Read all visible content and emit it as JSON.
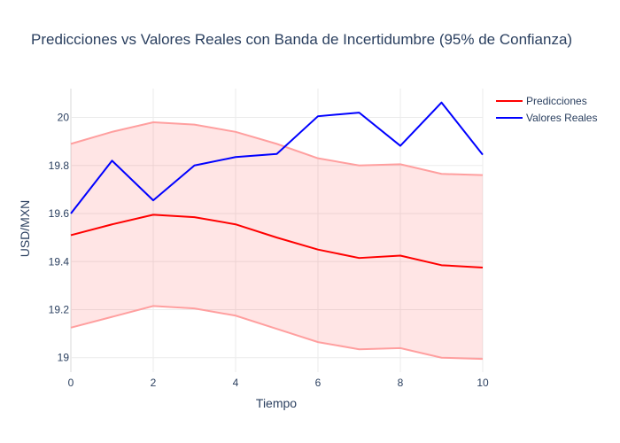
{
  "chart_data": {
    "type": "line",
    "title": "Predicciones vs Valores Reales con Banda de Incertidumbre (95% de Confianza)",
    "xlabel": "Tiempo",
    "ylabel": "USD/MXN",
    "xlim": [
      0,
      10
    ],
    "ylim": [
      18.94,
      20.12
    ],
    "xticks": [
      0,
      2,
      4,
      6,
      8,
      10
    ],
    "yticks": [
      19,
      19.2,
      19.4,
      19.6,
      19.8,
      20
    ],
    "grid": true,
    "legend_position": "top-right",
    "x": [
      0,
      1,
      2,
      3,
      4,
      5,
      6,
      7,
      8,
      9,
      10
    ],
    "band": {
      "upper": [
        19.89,
        19.94,
        19.98,
        19.97,
        19.94,
        19.89,
        19.83,
        19.8,
        19.805,
        19.765,
        19.76
      ],
      "lower": [
        19.125,
        19.17,
        19.215,
        19.205,
        19.175,
        19.12,
        19.065,
        19.035,
        19.04,
        19.0,
        18.995
      ],
      "fill_color": "rgba(255,0,0,0.1)",
      "line_color": "#ff9f9f"
    },
    "series": [
      {
        "name": "Predicciones",
        "color": "#ff0000",
        "values": [
          19.51,
          19.555,
          19.595,
          19.585,
          19.555,
          19.5,
          19.45,
          19.415,
          19.425,
          19.385,
          19.375
        ]
      },
      {
        "name": "Valores Reales",
        "color": "#0000ff",
        "values": [
          19.6,
          19.82,
          19.655,
          19.8,
          19.835,
          19.848,
          20.005,
          20.02,
          19.882,
          20.062,
          19.845
        ]
      }
    ]
  }
}
